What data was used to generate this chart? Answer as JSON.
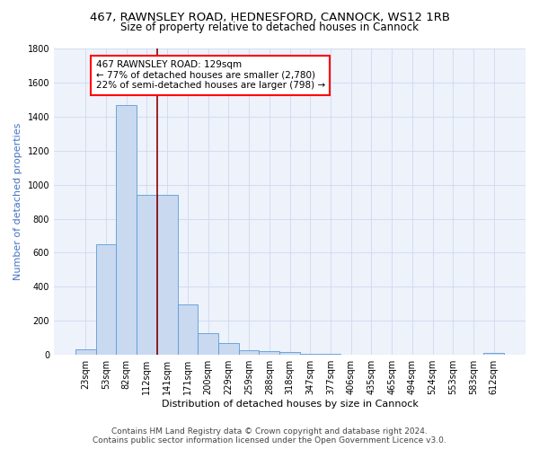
{
  "title1": "467, RAWNSLEY ROAD, HEDNESFORD, CANNOCK, WS12 1RB",
  "title2": "Size of property relative to detached houses in Cannock",
  "xlabel": "Distribution of detached houses by size in Cannock",
  "ylabel": "Number of detached properties",
  "categories": [
    "23sqm",
    "53sqm",
    "82sqm",
    "112sqm",
    "141sqm",
    "171sqm",
    "200sqm",
    "229sqm",
    "259sqm",
    "288sqm",
    "318sqm",
    "347sqm",
    "377sqm",
    "406sqm",
    "435sqm",
    "465sqm",
    "494sqm",
    "524sqm",
    "553sqm",
    "583sqm",
    "612sqm"
  ],
  "values": [
    35,
    650,
    1470,
    940,
    940,
    295,
    130,
    70,
    25,
    20,
    15,
    5,
    5,
    3,
    3,
    2,
    2,
    2,
    2,
    2,
    10
  ],
  "bar_color": "#c9d9f0",
  "bar_edge_color": "#5b9bd5",
  "ylim": [
    0,
    1800
  ],
  "yticks": [
    0,
    200,
    400,
    600,
    800,
    1000,
    1200,
    1400,
    1600,
    1800
  ],
  "vline_x_index": 3,
  "vline_color": "#8b0000",
  "annotation_text": "467 RAWNSLEY ROAD: 129sqm\n← 77% of detached houses are smaller (2,780)\n22% of semi-detached houses are larger (798) →",
  "footer1": "Contains HM Land Registry data © Crown copyright and database right 2024.",
  "footer2": "Contains public sector information licensed under the Open Government Licence v3.0.",
  "bg_color": "#edf2fb",
  "grid_color": "#d0d8ef",
  "title1_fontsize": 9.5,
  "title2_fontsize": 8.5,
  "ylabel_fontsize": 8,
  "xlabel_fontsize": 8,
  "tick_fontsize": 7,
  "annot_fontsize": 7.5,
  "footer_fontsize": 6.5
}
